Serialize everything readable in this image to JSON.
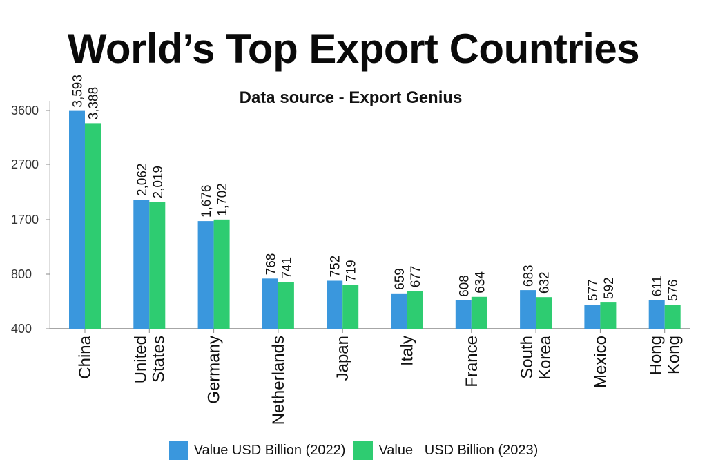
{
  "chart_data": {
    "type": "bar",
    "title": "World’s Top Export Countries",
    "subtitle": "Data source - Export Genius",
    "categories": [
      "China",
      "United\nStates",
      "Germany",
      "Netherlands",
      "Japan",
      "Italy",
      "France",
      "South\nKorea",
      "Mexico",
      "Hong\nKong"
    ],
    "series": [
      {
        "name": "Value USD Billion (2022)",
        "color": "#3a97dd",
        "values": [
          3593,
          2062,
          1676,
          768,
          752,
          659,
          608,
          683,
          577,
          611
        ],
        "labels": [
          "3,593",
          "2,062",
          "1,676",
          "768",
          "752",
          "659",
          "608",
          "683",
          "577",
          "611"
        ]
      },
      {
        "name": "Value   USD Billion (2023)",
        "color": "#2ecc71",
        "values": [
          3388,
          2019,
          1702,
          741,
          719,
          677,
          634,
          632,
          592,
          576
        ],
        "labels": [
          "3,388",
          "2,019",
          "1,702",
          "741",
          "719",
          "677",
          "634",
          "632",
          "592",
          "576"
        ]
      }
    ],
    "yticks": [
      400,
      800,
      1700,
      2700,
      3600
    ],
    "yticks_labels": [
      "400",
      "800",
      "1700",
      "2700",
      "3600"
    ],
    "ylim": [
      400,
      3600
    ],
    "grid": false,
    "legend": "bottom"
  }
}
